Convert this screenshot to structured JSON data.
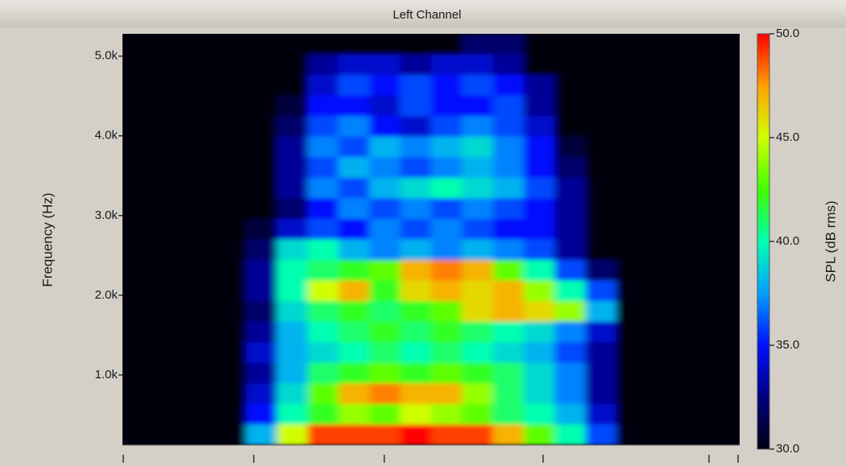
{
  "chart_data": {
    "type": "heatmap",
    "title": "Left Channel",
    "ylabel": "Frequency (Hz)",
    "colorbar_label": "SPL (dB rms)",
    "ylim": [
      120,
      5280
    ],
    "yticks": [
      {
        "value": 1000,
        "label": "1.0k"
      },
      {
        "value": 2000,
        "label": "2.0k"
      },
      {
        "value": 3000,
        "label": "3.0k"
      },
      {
        "value": 4000,
        "label": "4.0k"
      },
      {
        "value": 5000,
        "label": "5.0k"
      }
    ],
    "clim": [
      30,
      50
    ],
    "cticks": [
      {
        "value": 30,
        "label": "30.0"
      },
      {
        "value": 35,
        "label": "35.0"
      },
      {
        "value": 40,
        "label": "40.0"
      },
      {
        "value": 45,
        "label": "45.0"
      },
      {
        "value": 50,
        "label": "50.0"
      }
    ],
    "colormap": [
      "#000010",
      "#000080",
      "#0010ff",
      "#00a0ff",
      "#00ffb0",
      "#40ff00",
      "#d0ff00",
      "#ffa000",
      "#ff0000"
    ],
    "z": [
      [
        30,
        30,
        30,
        30,
        30,
        30,
        30,
        30,
        30,
        30,
        30,
        32,
        32,
        30,
        30,
        30,
        30,
        30,
        30,
        30
      ],
      [
        30,
        30,
        30,
        30,
        30,
        30,
        33,
        34,
        34,
        33,
        34,
        34,
        33,
        30,
        30,
        30,
        30,
        30,
        30,
        30
      ],
      [
        30,
        30,
        30,
        30,
        30,
        30,
        34,
        36,
        35,
        36,
        35,
        36,
        35,
        33,
        30,
        30,
        30,
        30,
        30,
        30
      ],
      [
        30,
        30,
        30,
        30,
        30,
        31,
        35,
        35,
        34,
        36,
        35,
        35,
        36,
        33,
        30,
        30,
        30,
        30,
        30,
        30
      ],
      [
        30,
        30,
        30,
        30,
        30,
        32,
        36,
        37,
        35,
        34,
        36,
        37,
        36,
        34,
        30,
        30,
        30,
        30,
        30,
        30
      ],
      [
        30,
        30,
        30,
        30,
        30,
        33,
        37,
        36,
        38,
        37,
        38,
        39,
        37,
        35,
        31,
        30,
        30,
        30,
        30,
        30
      ],
      [
        30,
        30,
        30,
        30,
        30,
        33,
        36,
        38,
        37,
        36,
        37,
        38,
        37,
        35,
        32,
        30,
        30,
        30,
        30,
        30
      ],
      [
        30,
        30,
        30,
        30,
        30,
        33,
        37,
        36,
        38,
        39,
        40,
        39,
        38,
        36,
        33,
        30,
        30,
        30,
        30,
        30
      ],
      [
        30,
        30,
        30,
        30,
        30,
        32,
        35,
        37,
        36,
        37,
        36,
        37,
        36,
        35,
        33,
        30,
        30,
        30,
        30,
        30
      ],
      [
        30,
        30,
        30,
        30,
        31,
        34,
        36,
        35,
        37,
        36,
        37,
        36,
        35,
        35,
        33,
        30,
        30,
        30,
        30,
        30
      ],
      [
        30,
        30,
        30,
        30,
        32,
        39,
        40,
        38,
        37,
        38,
        37,
        38,
        37,
        36,
        33,
        30,
        30,
        30,
        30,
        30
      ],
      [
        30,
        30,
        30,
        30,
        33,
        40,
        41,
        42,
        43,
        47,
        48,
        47,
        43,
        40,
        36,
        32,
        30,
        30,
        30,
        30
      ],
      [
        30,
        30,
        30,
        30,
        33,
        40,
        45,
        47,
        42,
        46,
        47,
        46,
        47,
        44,
        40,
        36,
        30,
        30,
        30,
        30
      ],
      [
        30,
        30,
        30,
        30,
        32,
        39,
        41,
        42,
        41,
        42,
        43,
        46,
        47,
        46,
        44,
        38,
        30,
        30,
        30,
        30
      ],
      [
        30,
        30,
        30,
        30,
        33,
        38,
        40,
        41,
        42,
        41,
        42,
        41,
        40,
        39,
        37,
        34,
        30,
        30,
        30,
        30
      ],
      [
        30,
        30,
        30,
        30,
        34,
        38,
        39,
        40,
        41,
        40,
        41,
        40,
        39,
        38,
        36,
        33,
        30,
        30,
        30,
        30
      ],
      [
        30,
        30,
        30,
        30,
        33,
        38,
        41,
        42,
        43,
        42,
        43,
        42,
        41,
        39,
        37,
        33,
        30,
        30,
        30,
        30
      ],
      [
        30,
        30,
        30,
        30,
        34,
        39,
        43,
        47,
        48,
        47,
        47,
        44,
        41,
        39,
        37,
        33,
        30,
        30,
        30,
        30
      ],
      [
        30,
        30,
        30,
        30,
        35,
        40,
        42,
        44,
        43,
        45,
        44,
        43,
        41,
        40,
        38,
        34,
        30,
        30,
        30,
        30
      ],
      [
        30,
        30,
        30,
        30,
        38,
        45,
        49,
        49,
        49,
        50,
        49,
        49,
        47,
        43,
        40,
        36,
        30,
        30,
        30,
        30
      ]
    ]
  }
}
